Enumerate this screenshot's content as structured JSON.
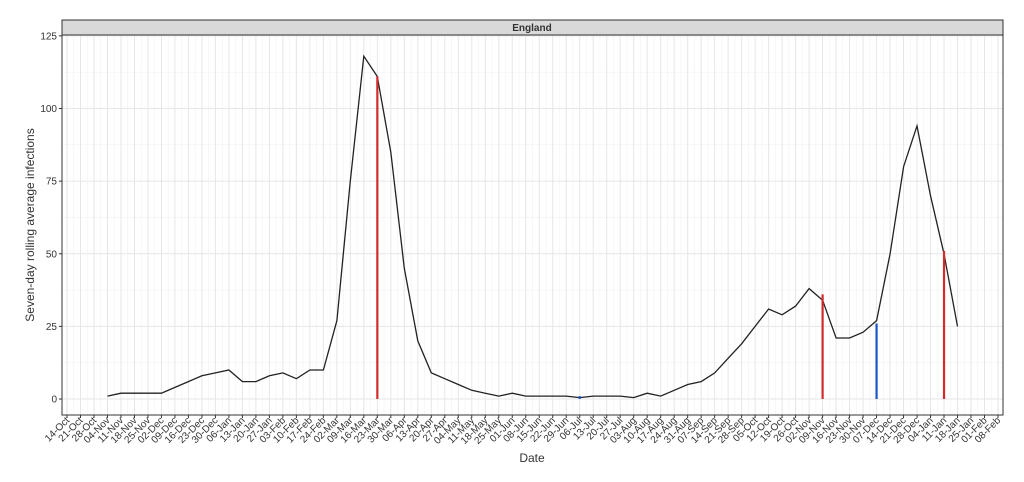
{
  "chart_data": {
    "type": "line",
    "strip_title": "England",
    "x_label": "Date",
    "y_label": "Seven-day rolling average infections",
    "categories": [
      "14-Oct",
      "21-Oct",
      "28-Oct",
      "04-Nov",
      "11-Nov",
      "18-Nov",
      "25-Nov",
      "02-Dec",
      "09-Dec",
      "16-Dec",
      "23-Dec",
      "30-Dec",
      "06-Jan",
      "13-Jan",
      "20-Jan",
      "27-Jan",
      "03-Feb",
      "10-Feb",
      "17-Feb",
      "24-Feb",
      "02-Mar",
      "09-Mar",
      "16-Mar",
      "23-Mar",
      "30-Mar",
      "06-Apr",
      "13-Apr",
      "20-Apr",
      "27-Apr",
      "04-May",
      "11-May",
      "18-May",
      "25-May",
      "01-Jun",
      "08-Jun",
      "15-Jun",
      "22-Jun",
      "29-Jun",
      "06-Jul",
      "13-Jul",
      "20-Jul",
      "27-Jul",
      "03-Aug",
      "10-Aug",
      "17-Aug",
      "24-Aug",
      "31-Aug",
      "07-Sep",
      "14-Sep",
      "21-Sep",
      "28-Sep",
      "05-Oct",
      "12-Oct",
      "19-Oct",
      "26-Oct",
      "02-Nov",
      "09-Nov",
      "16-Nov",
      "23-Nov",
      "30-Nov",
      "07-Dec",
      "14-Dec",
      "21-Dec",
      "28-Dec",
      "04-Jan",
      "11-Jan",
      "18-Jan",
      "25-Jan",
      "01-Feb",
      "08-Feb"
    ],
    "series": [
      {
        "color": "#222222",
        "values": [
          null,
          null,
          null,
          1,
          2,
          2,
          2,
          2,
          4,
          6,
          8,
          9,
          10,
          6,
          6,
          8,
          9,
          7,
          10,
          10,
          27,
          75,
          118,
          111,
          85,
          45,
          20,
          9,
          7,
          5,
          3,
          2,
          1,
          2,
          1,
          1,
          1,
          1,
          0.5,
          1,
          1,
          1,
          0.5,
          2,
          1,
          3,
          5,
          6,
          9,
          14,
          19,
          25,
          31,
          29,
          32,
          38,
          34,
          21,
          21,
          23,
          27,
          50,
          80,
          94,
          70,
          50,
          25,
          null,
          null,
          null
        ]
      }
    ],
    "segments": [
      {
        "x": "23-Mar",
        "value": 111,
        "color": "#d42a2a"
      },
      {
        "x": "06-Jul",
        "value": 1,
        "color": "#1a56c8"
      },
      {
        "x": "09-Nov",
        "value": 36,
        "color": "#d42a2a"
      },
      {
        "x": "07-Dec",
        "value": 26,
        "color": "#1a56c8"
      },
      {
        "x": "11-Jan",
        "value": 51,
        "color": "#d42a2a"
      }
    ],
    "ylim": [
      -5.5,
      125.3
    ],
    "yticks": [
      0,
      25,
      50,
      75,
      100,
      125
    ],
    "grid": true
  }
}
